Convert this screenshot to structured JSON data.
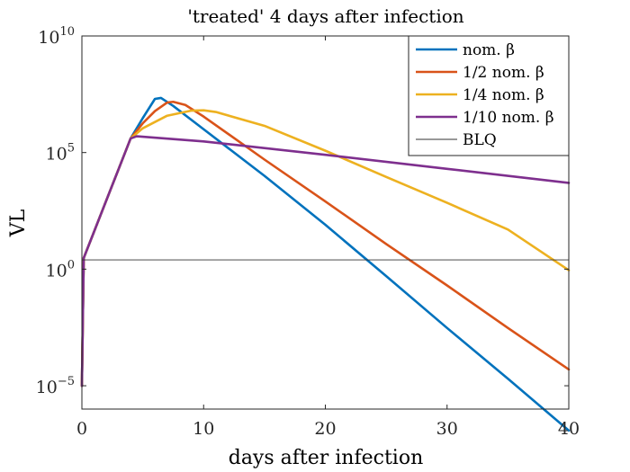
{
  "chart_data": {
    "type": "line",
    "title": "'treated' 4 days after infection",
    "xlabel": "days after infection",
    "ylabel": "VL",
    "x_scale": "linear",
    "y_scale": "log",
    "xlim": [
      0,
      40
    ],
    "ylim": [
      1e-06,
      10000000000.0
    ],
    "x_ticks": [
      0,
      10,
      20,
      30,
      40
    ],
    "x_tick_labels": [
      "0",
      "10",
      "20",
      "30",
      "40"
    ],
    "y_ticks": [
      1e-05,
      1,
      100000.0,
      10000000000.0
    ],
    "y_tick_labels": [
      {
        "base": "10",
        "exp": "−5"
      },
      {
        "base": "10",
        "exp": "0"
      },
      {
        "base": "10",
        "exp": "5"
      },
      {
        "base": "10",
        "exp": "10"
      }
    ],
    "grid": false,
    "legend_position": "top-right",
    "series": [
      {
        "name": "nom. β",
        "color": "#0072BD",
        "x": [
          0,
          0.15,
          4,
          5,
          6,
          6.5,
          7.5,
          10,
          15,
          20,
          25,
          30,
          35,
          40
        ],
        "y": [
          1e-05,
          3,
          400000.0,
          3000000.0,
          20000000.0,
          22000000.0,
          10000000.0,
          1000000.0,
          10000.0,
          80,
          0.5,
          0.003,
          2e-05,
          1.2e-07
        ]
      },
      {
        "name": "1/2 nom. β",
        "color": "#D95319",
        "x": [
          0,
          0.15,
          4,
          5,
          6,
          7,
          7.5,
          8.5,
          10,
          15,
          20,
          25,
          30,
          35,
          40
        ],
        "y": [
          1e-05,
          3,
          400000.0,
          1800000.0,
          6000000.0,
          14000000.0,
          15000000.0,
          11000000.0,
          3500000.0,
          50000.0,
          800,
          12,
          0.2,
          0.003,
          5e-05
        ]
      },
      {
        "name": "1/4 nom. β",
        "color": "#EDB120",
        "x": [
          0,
          0.15,
          4,
          5,
          7,
          9,
          10,
          11,
          15,
          20,
          25,
          30,
          35,
          40
        ],
        "y": [
          1e-05,
          3,
          400000.0,
          1100000.0,
          3800000.0,
          6300000.0,
          6500000.0,
          5500000.0,
          1400000.0,
          120000.0,
          9000,
          700,
          50,
          0.9
        ]
      },
      {
        "name": "1/10 nom. β",
        "color": "#7E2F8E",
        "x": [
          0,
          0.15,
          4,
          4.5,
          10,
          20,
          30,
          40
        ],
        "y": [
          1e-05,
          3,
          400000.0,
          500000.0,
          300000.0,
          80000.0,
          20000.0,
          5000
        ]
      },
      {
        "name": "BLQ",
        "color": "#333333",
        "x": [
          0,
          40
        ],
        "y": [
          2.5,
          2.5
        ]
      }
    ]
  }
}
